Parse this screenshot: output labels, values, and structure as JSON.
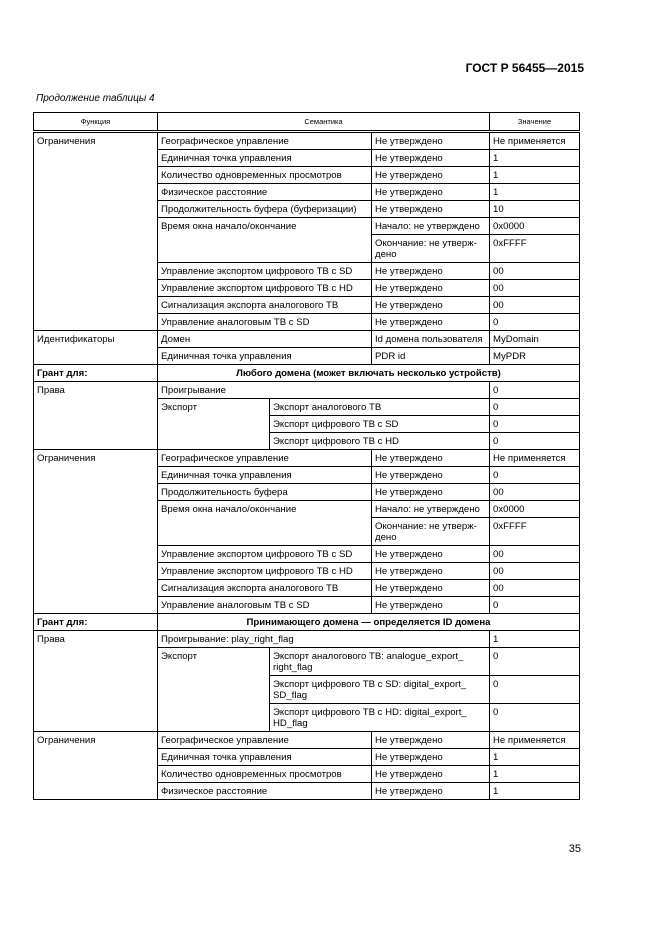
{
  "header": {
    "standard": "ГОСТ Р 56455—2015",
    "continuation": "Продолжение таблицы 4"
  },
  "columns": [
    "Функция",
    "Семантика",
    "Значение"
  ],
  "sections": [
    {
      "type": "group",
      "function": "Ограничения",
      "rows": [
        {
          "param": "Географическое управление",
          "state": "Не утверждено",
          "value": "Не применяется"
        },
        {
          "param": "Единичная точка управления",
          "state": "Не утверждено",
          "value": "1"
        },
        {
          "param": "Количество одновременных просмотров",
          "state": "Не утверждено",
          "value": "1"
        },
        {
          "param": "Физическое расстояние",
          "state": "Не утверждено",
          "value": "1"
        },
        {
          "param": "Продолжительность буфера (буферизации)",
          "state": "Не утверждено",
          "value": "10"
        },
        {
          "param": "Время окна начало/окончание",
          "sub": [
            {
              "state": "Начало: не утверждено",
              "value": "0x0000"
            },
            {
              "state": "Окончание: не утверж-\nдено",
              "value": "0xFFFF"
            }
          ]
        },
        {
          "param": "Управление экспортом цифрового ТВ с SD",
          "state": "Не утверждено",
          "value": "00"
        },
        {
          "param": "Управление экспортом цифрового ТВ с HD",
          "state": "Не утверждено",
          "value": "00"
        },
        {
          "param": "Сигнализация экспорта аналогового ТВ",
          "state": "Не утверждено",
          "value": "00"
        },
        {
          "param": "Управление аналоговым ТВ с SD",
          "state": "Не утверждено",
          "value": "0"
        }
      ]
    },
    {
      "type": "group",
      "function": "Идентификаторы",
      "rows": [
        {
          "param": "Домен",
          "state": "Id домена пользователя",
          "value": "MyDomain"
        },
        {
          "param": "Единичная точка управления",
          "state": "PDR id",
          "value": "MyPDR"
        }
      ]
    },
    {
      "type": "grant",
      "label": "Грант для:",
      "text": "Любого домена (может включать несколько устройств)"
    },
    {
      "type": "group",
      "function": "Права",
      "rows": [
        {
          "param": "Проигрывание",
          "value": "0"
        },
        {
          "param": "Экспорт",
          "items": [
            {
              "item": "Экспорт аналогового ТВ",
              "value": "0"
            },
            {
              "item": "Экспорт цифрового ТВ с SD",
              "value": "0"
            },
            {
              "item": "Экспорт цифрового ТВ с HD",
              "value": "0"
            }
          ]
        }
      ]
    },
    {
      "type": "group",
      "function": "Ограничения",
      "rows": [
        {
          "param": "Географическое управление",
          "state": "Не утверждено",
          "value": "Не применяется"
        },
        {
          "param": "Единичная точка управления",
          "state": "Не утверждено",
          "value": "0"
        },
        {
          "param": "Продолжительность буфера",
          "state": "Не утверждено",
          "value": "00"
        },
        {
          "param": "Время окна начало/окончание",
          "sub": [
            {
              "state": "Начало: не утверждено",
              "value": "0x0000"
            },
            {
              "state": "Окончание: не утверж-\nдено",
              "value": "0xFFFF"
            }
          ]
        },
        {
          "param": "Управление экспортом цифрового ТВ с SD",
          "state": "Не утверждено",
          "value": "00"
        },
        {
          "param": "Управление экспортом цифрового ТВ с HD",
          "state": "Не утверждено",
          "value": "00"
        },
        {
          "param": "Сигнализация экспорта аналогового ТВ",
          "state": "Не утверждено",
          "value": "00"
        },
        {
          "param": "Управление аналоговым ТВ с SD",
          "state": "Не утверждено",
          "value": "0"
        }
      ]
    },
    {
      "type": "grant",
      "label": "Грант для:",
      "text": "Принимающего домена — определяется ID домена"
    },
    {
      "type": "group",
      "function": "Права",
      "rows": [
        {
          "param": "Проигрывание: play_right_flag",
          "value": "1"
        },
        {
          "param": "Экспорт",
          "items": [
            {
              "item": "Экспорт аналогового ТВ: analogue_export_\nright_flag",
              "value": "0"
            },
            {
              "item": "Экспорт цифрового ТВ с SD: digital_export_\nSD_flag",
              "value": "0"
            },
            {
              "item": "Экспорт цифрового ТВ с HD: digital_export_\nHD_flag",
              "value": "0"
            }
          ]
        }
      ]
    },
    {
      "type": "group",
      "function": "Ограничения",
      "rows": [
        {
          "param": "Географическое управление",
          "state": "Не утверждено",
          "value": "Не применяется"
        },
        {
          "param": "Единичная точка управления",
          "state": "Не утверждено",
          "value": "1"
        },
        {
          "param": "Количество одновременных просмотров",
          "state": "Не утверждено",
          "value": "1"
        },
        {
          "param": "Физическое расстояние",
          "state": "Не утверждено",
          "value": "1"
        }
      ]
    }
  ],
  "footer": {
    "page_number": "35"
  }
}
